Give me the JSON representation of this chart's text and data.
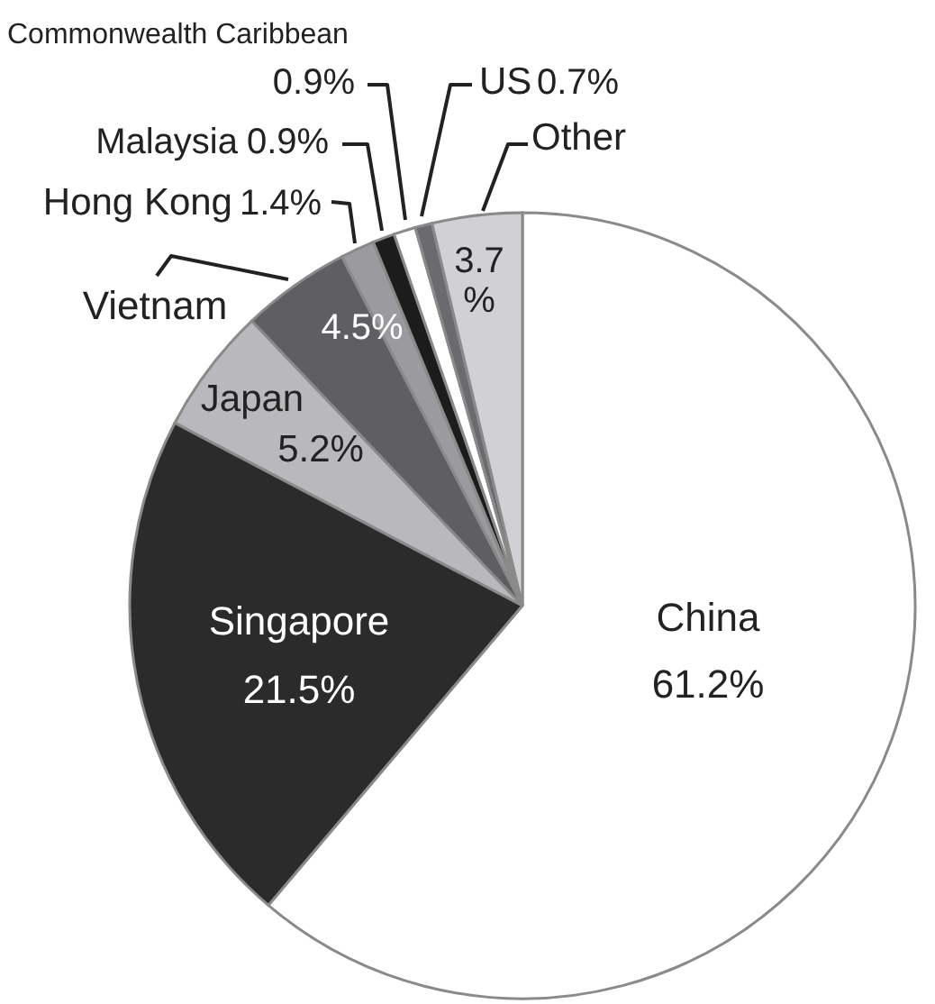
{
  "chart_data": {
    "type": "pie",
    "categories": [
      "China",
      "Singapore",
      "Japan",
      "Vietnam",
      "Hong Kong",
      "Malaysia",
      "Commonwealth Caribbean",
      "US",
      "Other"
    ],
    "values": [
      61.2,
      21.5,
      5.2,
      4.5,
      1.4,
      0.9,
      0.9,
      0.7,
      3.7
    ],
    "colors": [
      "#ffffff",
      "#2b2b2b",
      "#b9b9bd",
      "#5f5f63",
      "#9b9b9f",
      "#1c1c1c",
      "#ffffff",
      "#6b6b6f",
      "#d0d0d5"
    ],
    "value_labels": [
      "61.2%",
      "21.5%",
      "5.2%",
      "4.5%",
      "1.4%",
      "0.9%",
      "0.9%",
      "0.7%",
      "3.7%"
    ]
  }
}
